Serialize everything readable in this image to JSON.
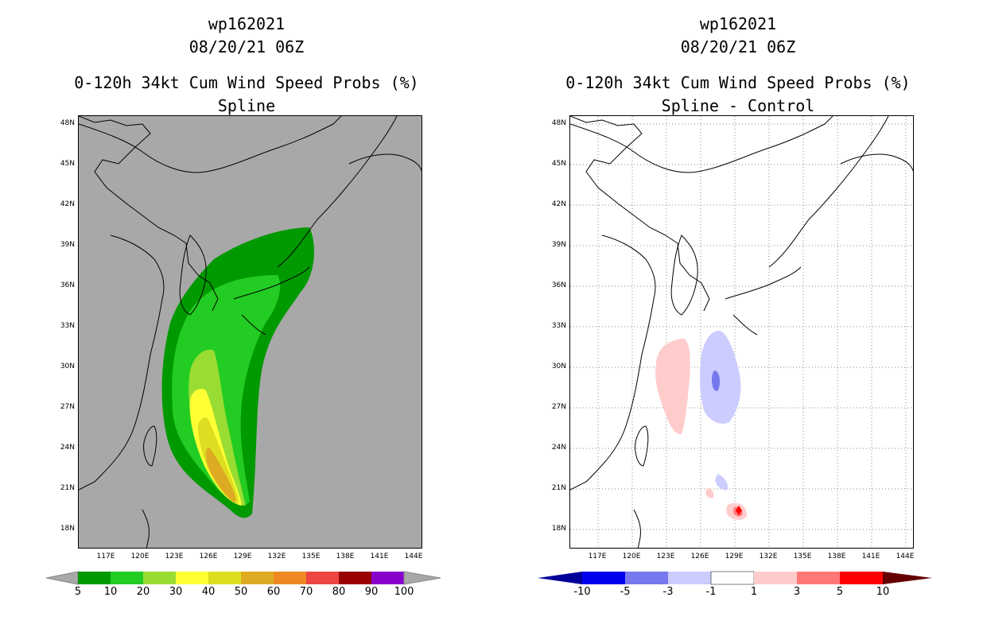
{
  "left_panel": {
    "title_lines": [
      "wp162021",
      "08/20/21 06Z",
      "0-120h 34kt Cum Wind Speed Probs (%)",
      "Spline"
    ],
    "colorbar": {
      "labels": [
        "5",
        "10",
        "20",
        "30",
        "40",
        "50",
        "60",
        "70",
        "80",
        "90",
        "100"
      ],
      "colors": [
        "#009900",
        "#22cc22",
        "#99dd33",
        "#ffff33",
        "#dddd22",
        "#ddaa22",
        "#ee8822",
        "#ee4444",
        "#990000",
        "#8800cc"
      ]
    }
  },
  "right_panel": {
    "title_lines": [
      "wp162021",
      "08/20/21 06Z",
      "0-120h 34kt Cum Wind Speed Probs (%)",
      "Spline - Control"
    ],
    "colorbar": {
      "labels": [
        "-10",
        "-5",
        "-3",
        "-1",
        "1",
        "3",
        "5",
        "10"
      ],
      "colors": [
        "#0000cc",
        "#3333ee",
        "#7777ee",
        "#ccccff",
        "#ffffff",
        "#ffcccc",
        "#ff7777",
        "#ff0000"
      ]
    }
  },
  "axes": {
    "lat_labels": [
      "48N",
      "45N",
      "42N",
      "39N",
      "36N",
      "33N",
      "30N",
      "27N",
      "24N",
      "21N",
      "18N"
    ],
    "lon_labels": [
      "117E",
      "120E",
      "123E",
      "126E",
      "129E",
      "132E",
      "135E",
      "138E",
      "141E",
      "144E"
    ]
  }
}
